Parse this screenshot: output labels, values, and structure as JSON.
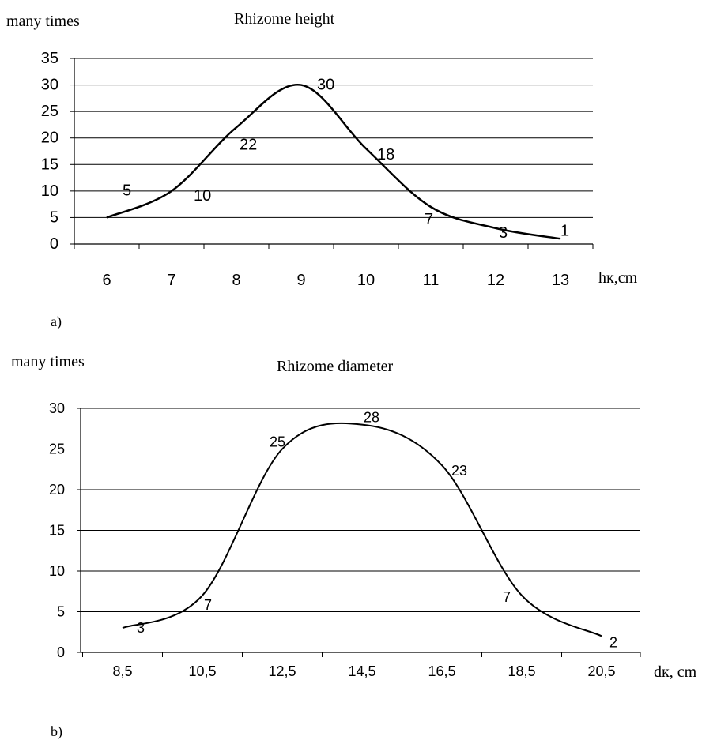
{
  "chart_data": [
    {
      "type": "line",
      "panel_label": "a)",
      "title": "Rhizome height",
      "ylabel": "many times",
      "xlabel": "hк,cm",
      "x_ticks": [
        "6",
        "7",
        "8",
        "9",
        "10",
        "11",
        "12",
        "13"
      ],
      "y_ticks": [
        "0",
        "5",
        "10",
        "15",
        "20",
        "25",
        "30",
        "35"
      ],
      "ylim": [
        0,
        35
      ],
      "grid": true,
      "series": [
        {
          "x": [
            6,
            7,
            8,
            9,
            10,
            11,
            12,
            13
          ],
          "values": [
            5,
            10,
            22,
            30,
            18,
            7,
            3,
            1
          ],
          "labels": [
            "5",
            "10",
            "22",
            "30",
            "18",
            "7",
            "3",
            "1"
          ]
        }
      ]
    },
    {
      "type": "line",
      "panel_label": "b)",
      "title": "Rhizome diameter",
      "ylabel": "many times",
      "xlabel": "dк, cm",
      "x_ticks": [
        "8,5",
        "10,5",
        "12,5",
        "14,5",
        "16,5",
        "18,5",
        "20,5"
      ],
      "y_ticks": [
        "0",
        "5",
        "10",
        "15",
        "20",
        "25",
        "30"
      ],
      "ylim": [
        0,
        30
      ],
      "grid": true,
      "series": [
        {
          "x": [
            8.5,
            10.5,
            12.5,
            14.5,
            16.5,
            18.5,
            20.5
          ],
          "values": [
            3,
            7,
            25,
            28,
            23,
            7,
            2
          ],
          "labels": [
            "3",
            "7",
            "25",
            "28",
            "23",
            "7",
            "2"
          ]
        }
      ]
    }
  ]
}
